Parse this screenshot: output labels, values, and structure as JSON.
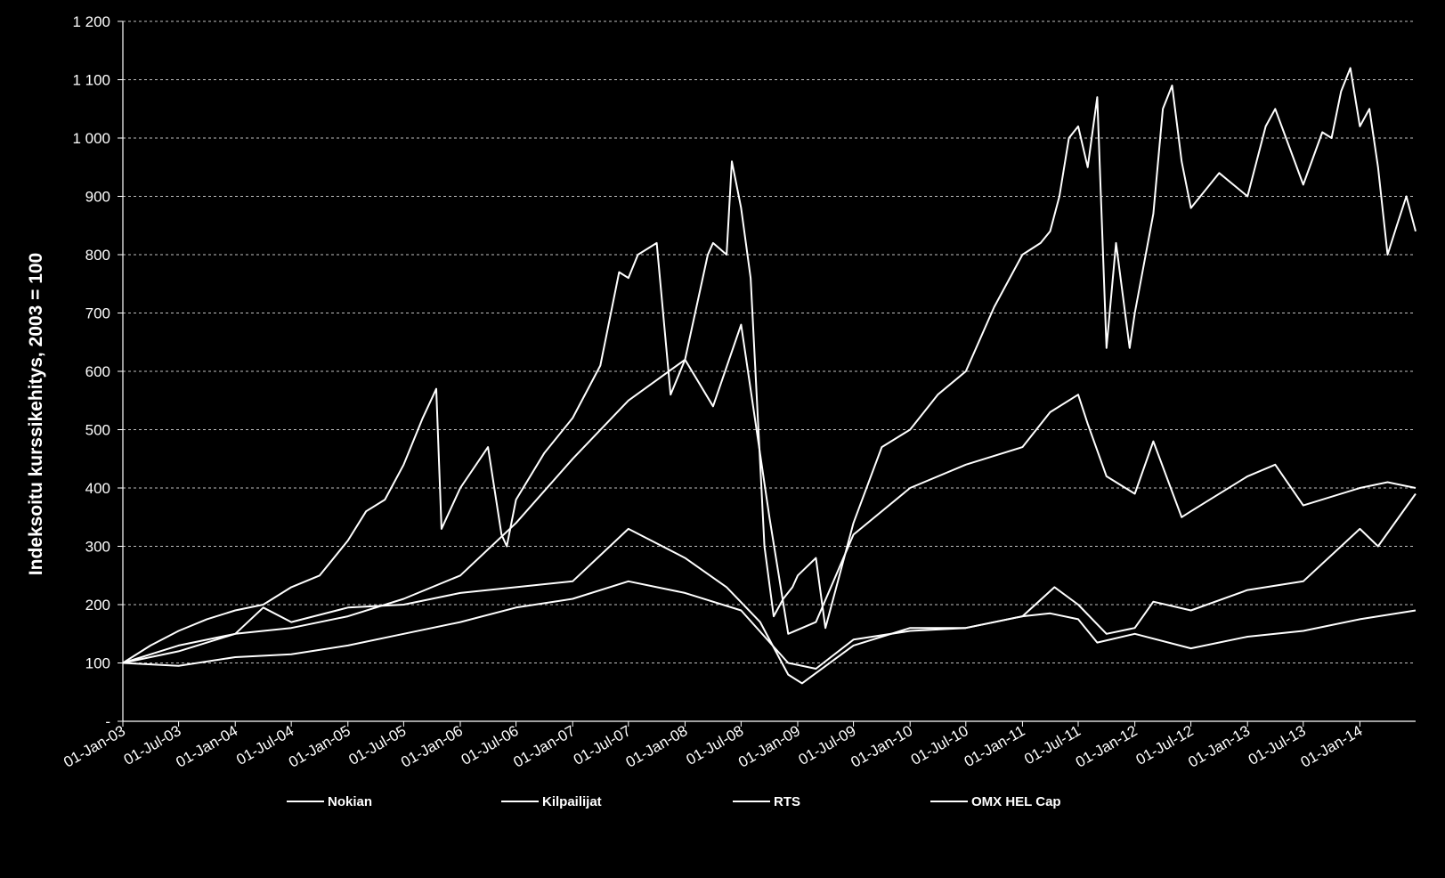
{
  "chart_data": {
    "type": "line",
    "ylabel": "Indeksoitu kurssikehitys, 2003 = 100",
    "xlabel": "",
    "title": "",
    "ylim": [
      0,
      1200
    ],
    "yticks": [
      0,
      100,
      200,
      300,
      400,
      500,
      600,
      700,
      800,
      900,
      1000,
      1100,
      1200
    ],
    "ytick_labels": [
      "-",
      "100",
      "200",
      "300",
      "400",
      "500",
      "600",
      "700",
      "800",
      "900",
      "1 000",
      "1 100",
      "1 200"
    ],
    "xlim": [
      "2003-01-01",
      "2014-07-01"
    ],
    "xticks": [
      "2003-01-01",
      "2003-07-01",
      "2004-01-01",
      "2004-07-01",
      "2005-01-01",
      "2005-07-01",
      "2006-01-01",
      "2006-07-01",
      "2007-01-01",
      "2007-07-01",
      "2008-01-01",
      "2008-07-01",
      "2009-01-01",
      "2009-07-01",
      "2010-01-01",
      "2010-07-01",
      "2011-01-01",
      "2011-07-01",
      "2012-01-01",
      "2012-07-01",
      "2013-01-01",
      "2013-07-01",
      "2014-01-01"
    ],
    "xtick_labels": [
      "01-Jan-03",
      "01-Jul-03",
      "01-Jan-04",
      "01-Jul-04",
      "01-Jan-05",
      "01-Jul-05",
      "01-Jan-06",
      "01-Jul-06",
      "01-Jan-07",
      "01-Jul-07",
      "01-Jan-08",
      "01-Jul-08",
      "01-Jan-09",
      "01-Jul-09",
      "01-Jan-10",
      "01-Jul-10",
      "01-Jan-11",
      "01-Jul-11",
      "01-Jan-12",
      "01-Jul-12",
      "01-Jan-13",
      "01-Jul-13",
      "01-Jan-14"
    ],
    "grid": true,
    "legend_position": "bottom",
    "line_color": "#ffffff",
    "series": [
      {
        "name": "Nokian",
        "dates": [
          "2003-01-01",
          "2003-04-01",
          "2003-07-01",
          "2003-10-01",
          "2004-01-01",
          "2004-04-01",
          "2004-07-01",
          "2004-10-01",
          "2005-01-01",
          "2005-03-01",
          "2005-05-01",
          "2005-07-01",
          "2005-09-01",
          "2005-10-15",
          "2005-11-01",
          "2006-01-01",
          "2006-04-01",
          "2006-05-15",
          "2006-06-01",
          "2006-07-01",
          "2006-10-01",
          "2007-01-01",
          "2007-04-01",
          "2007-06-01",
          "2007-07-01",
          "2007-08-01",
          "2007-10-01",
          "2007-11-15",
          "2008-01-01",
          "2008-03-15",
          "2008-04-01",
          "2008-05-15",
          "2008-06-01",
          "2008-07-01",
          "2008-08-01",
          "2008-09-15",
          "2008-10-15",
          "2008-11-15",
          "2008-12-15",
          "2009-01-01",
          "2009-03-01",
          "2009-04-01",
          "2009-07-01",
          "2009-10-01",
          "2010-01-01",
          "2010-04-01",
          "2010-07-01",
          "2010-10-01",
          "2011-01-01",
          "2011-03-01",
          "2011-04-01",
          "2011-05-01",
          "2011-06-01",
          "2011-07-01",
          "2011-08-01",
          "2011-09-01",
          "2011-10-01",
          "2011-11-01",
          "2011-12-15",
          "2012-01-01",
          "2012-03-01",
          "2012-04-01",
          "2012-05-01",
          "2012-06-01",
          "2012-07-01",
          "2012-10-01",
          "2013-01-01",
          "2013-03-01",
          "2013-04-01",
          "2013-07-01",
          "2013-09-01",
          "2013-10-01",
          "2013-11-01",
          "2013-12-01",
          "2014-01-01",
          "2014-02-01",
          "2014-03-01",
          "2014-04-01",
          "2014-05-01",
          "2014-06-01",
          "2014-07-01"
        ],
        "values": [
          100,
          130,
          155,
          175,
          190,
          200,
          230,
          250,
          310,
          360,
          380,
          440,
          520,
          570,
          330,
          400,
          470,
          320,
          300,
          380,
          460,
          520,
          610,
          770,
          760,
          800,
          820,
          560,
          620,
          800,
          820,
          800,
          960,
          880,
          760,
          300,
          180,
          210,
          230,
          250,
          280,
          160,
          340,
          470,
          500,
          560,
          600,
          710,
          800,
          820,
          840,
          900,
          1000,
          1020,
          950,
          1070,
          640,
          820,
          640,
          700,
          870,
          1050,
          1090,
          960,
          880,
          940,
          900,
          1020,
          1050,
          920,
          1010,
          1000,
          1080,
          1120,
          1020,
          1050,
          950,
          800,
          850,
          900,
          840
        ]
      },
      {
        "name": "Kilpailijat",
        "dates": [
          "2003-01-01",
          "2003-07-01",
          "2004-01-01",
          "2004-07-01",
          "2005-01-01",
          "2005-07-01",
          "2006-01-01",
          "2006-07-01",
          "2007-01-01",
          "2007-07-01",
          "2008-01-01",
          "2008-04-01",
          "2008-07-01",
          "2008-10-01",
          "2008-12-01",
          "2009-03-01",
          "2009-07-01",
          "2010-01-01",
          "2010-07-01",
          "2011-01-01",
          "2011-04-01",
          "2011-07-01",
          "2011-08-01",
          "2011-10-01",
          "2012-01-01",
          "2012-03-01",
          "2012-06-01",
          "2012-07-01",
          "2013-01-01",
          "2013-04-01",
          "2013-07-01",
          "2014-01-01",
          "2014-04-01",
          "2014-07-01"
        ],
        "values": [
          100,
          130,
          150,
          160,
          180,
          210,
          250,
          340,
          450,
          550,
          620,
          540,
          680,
          350,
          150,
          170,
          320,
          400,
          440,
          470,
          530,
          560,
          510,
          420,
          390,
          480,
          350,
          360,
          420,
          440,
          370,
          400,
          410,
          400
        ]
      },
      {
        "name": "RTS",
        "dates": [
          "2003-01-01",
          "2003-07-01",
          "2004-01-01",
          "2004-04-01",
          "2004-07-01",
          "2005-01-01",
          "2005-07-01",
          "2006-01-01",
          "2006-07-01",
          "2007-01-01",
          "2007-07-01",
          "2008-01-01",
          "2008-05-15",
          "2008-09-01",
          "2008-12-01",
          "2009-01-15",
          "2009-07-01",
          "2010-01-01",
          "2010-07-01",
          "2011-01-01",
          "2011-04-15",
          "2011-07-01",
          "2011-10-01",
          "2012-01-01",
          "2012-03-01",
          "2012-07-01",
          "2013-01-01",
          "2013-07-01",
          "2014-01-01",
          "2014-03-01",
          "2014-07-01"
        ],
        "values": [
          100,
          120,
          150,
          195,
          170,
          195,
          200,
          220,
          230,
          240,
          330,
          280,
          230,
          170,
          80,
          65,
          130,
          160,
          160,
          180,
          230,
          200,
          150,
          160,
          205,
          190,
          225,
          240,
          330,
          300,
          390
        ]
      },
      {
        "name": "OMX HEL Cap",
        "dates": [
          "2003-01-01",
          "2003-07-01",
          "2004-01-01",
          "2004-07-01",
          "2005-01-01",
          "2005-07-01",
          "2006-01-01",
          "2006-07-01",
          "2007-01-01",
          "2007-07-01",
          "2008-01-01",
          "2008-07-01",
          "2008-12-01",
          "2009-03-01",
          "2009-07-01",
          "2010-01-01",
          "2010-07-01",
          "2011-01-01",
          "2011-04-01",
          "2011-07-01",
          "2011-09-01",
          "2012-01-01",
          "2012-07-01",
          "2013-01-01",
          "2013-07-01",
          "2014-01-01",
          "2014-07-01"
        ],
        "values": [
          100,
          95,
          110,
          115,
          130,
          150,
          170,
          195,
          210,
          240,
          220,
          190,
          100,
          90,
          140,
          155,
          160,
          180,
          185,
          175,
          135,
          150,
          125,
          145,
          155,
          175,
          190
        ]
      }
    ]
  }
}
